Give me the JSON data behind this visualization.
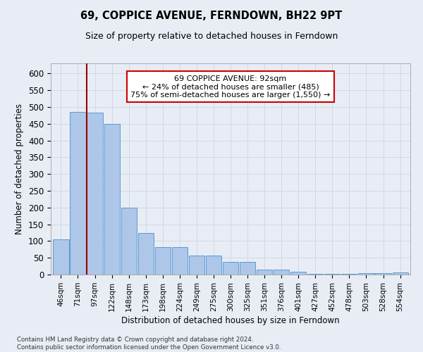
{
  "title": "69, COPPICE AVENUE, FERNDOWN, BH22 9PT",
  "subtitle": "Size of property relative to detached houses in Ferndown",
  "xlabel": "Distribution of detached houses by size in Ferndown",
  "ylabel": "Number of detached properties",
  "categories": [
    "46sqm",
    "71sqm",
    "97sqm",
    "122sqm",
    "148sqm",
    "173sqm",
    "198sqm",
    "224sqm",
    "249sqm",
    "275sqm",
    "300sqm",
    "325sqm",
    "351sqm",
    "376sqm",
    "401sqm",
    "427sqm",
    "452sqm",
    "478sqm",
    "503sqm",
    "528sqm",
    "554sqm"
  ],
  "values": [
    105,
    485,
    483,
    450,
    200,
    123,
    82,
    82,
    56,
    56,
    38,
    38,
    14,
    14,
    8,
    3,
    3,
    3,
    5,
    5,
    6
  ],
  "bar_color": "#aec6e8",
  "bar_edge_color": "#5b9bd5",
  "vline_x": 1.5,
  "annotation_text": "69 COPPICE AVENUE: 92sqm\n← 24% of detached houses are smaller (485)\n75% of semi-detached houses are larger (1,550) →",
  "ann_box_color": "#ffffff",
  "ann_box_edge": "#cc0000",
  "footer": "Contains HM Land Registry data © Crown copyright and database right 2024.\nContains public sector information licensed under the Open Government Licence v3.0.",
  "ylim": [
    0,
    630
  ],
  "yticks": [
    0,
    50,
    100,
    150,
    200,
    250,
    300,
    350,
    400,
    450,
    500,
    550,
    600
  ],
  "grid_color": "#d0d8e8",
  "bg_color": "#e8edf5",
  "vline_color": "#9b0000"
}
